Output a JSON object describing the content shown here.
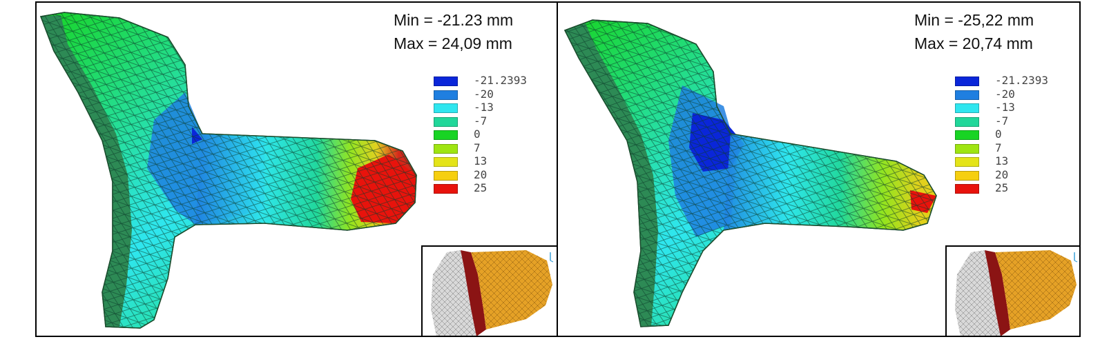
{
  "panels": [
    {
      "min_label": "Min = -21.23 mm",
      "max_label": "Max = 24,09 mm"
    },
    {
      "min_label": "Min = -25,22 mm",
      "max_label": "Max = 20,74 mm"
    }
  ],
  "legend": {
    "entries": [
      {
        "label": "-21.2393",
        "color": "#0a26d9"
      },
      {
        "label": "-20",
        "color": "#1f7fe0"
      },
      {
        "label": "-13",
        "color": "#2fe6ef"
      },
      {
        "label": "-7",
        "color": "#21d79a"
      },
      {
        "label": "0",
        "color": "#18d424"
      },
      {
        "label": "7",
        "color": "#9fe512"
      },
      {
        "label": "13",
        "color": "#e4e419"
      },
      {
        "label": "20",
        "color": "#f6cf10"
      },
      {
        "label": "25",
        "color": "#e8130c"
      }
    ]
  },
  "inset": {
    "bone_color": "#d9d9d9",
    "implant_color": "#8b1414",
    "tissue_color": "#e5a126",
    "axis_icon": "coordinate-triad-icon"
  }
}
